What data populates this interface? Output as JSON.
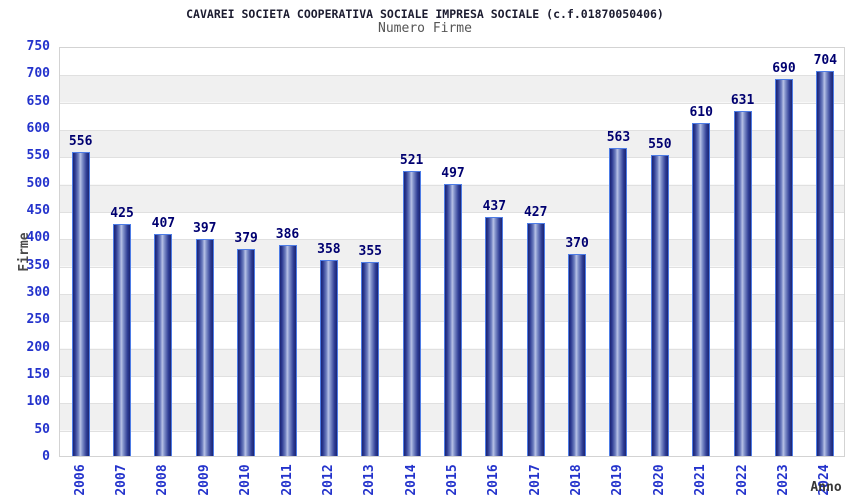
{
  "chart_data": {
    "type": "bar",
    "title": "CAVAREI SOCIETA COOPERATIVA SOCIALE IMPRESA SOCIALE (c.f.01870050406)",
    "subtitle": "Numero Firme",
    "xlabel": "Anno",
    "ylabel": "Firme",
    "categories": [
      "2006",
      "2007",
      "2008",
      "2009",
      "2010",
      "2011",
      "2012",
      "2013",
      "2014",
      "2015",
      "2016",
      "2017",
      "2018",
      "2019",
      "2020",
      "2021",
      "2022",
      "2023",
      "2024"
    ],
    "values": [
      556,
      425,
      407,
      397,
      379,
      386,
      358,
      355,
      521,
      497,
      437,
      427,
      370,
      563,
      550,
      610,
      631,
      690,
      704
    ],
    "ylim": [
      0,
      750
    ],
    "yticks": [
      0,
      50,
      100,
      150,
      200,
      250,
      300,
      350,
      400,
      450,
      500,
      550,
      600,
      650,
      700,
      750
    ],
    "grid": true,
    "legend": "none",
    "plot_bands": "alternating white / light-gray every 50 units",
    "x_tick_rotation": -90,
    "colors": {
      "background": "#ffffff",
      "band_gray": "#f0f0f0",
      "gridline": "#e0e0e0",
      "plot_border": "#d3d3d3",
      "bar_dark": "#1c2572",
      "bar_mid": "#2e3d95",
      "bar_highlight": "#b8c2e6",
      "bar_outline": "#4d7ce6",
      "axis_tick_blue": "#2433cc",
      "value_label_navy": "#000070",
      "title_color": "#1c1c30",
      "subtitle_gray": "#555555",
      "axis_title_gray": "#4a4a4a"
    }
  }
}
